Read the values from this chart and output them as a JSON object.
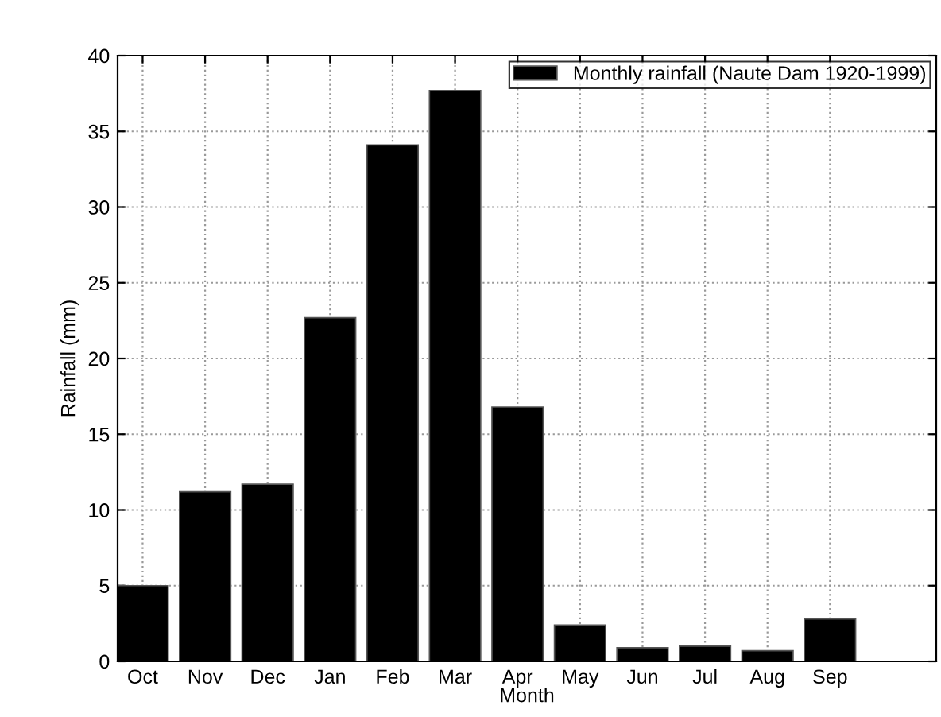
{
  "chart_data": {
    "type": "bar",
    "xlabel": "Month",
    "ylabel": "Rainfall (mm)",
    "categories": [
      "Oct",
      "Nov",
      "Dec",
      "Jan",
      "Feb",
      "Mar",
      "Apr",
      "May",
      "Jun",
      "Jul",
      "Aug",
      "Sep"
    ],
    "series": [
      {
        "name": "Monthly rainfall (Naute Dam 1920-1999)",
        "color": "#000000",
        "values": [
          5.0,
          11.2,
          11.7,
          22.7,
          34.1,
          37.7,
          16.8,
          2.4,
          0.9,
          1.0,
          0.7,
          2.8
        ]
      }
    ],
    "ylim": [
      0,
      40
    ],
    "yticks": [
      0,
      5,
      10,
      15,
      20,
      25,
      30,
      35,
      40
    ],
    "grid": true,
    "legend": "top right"
  }
}
